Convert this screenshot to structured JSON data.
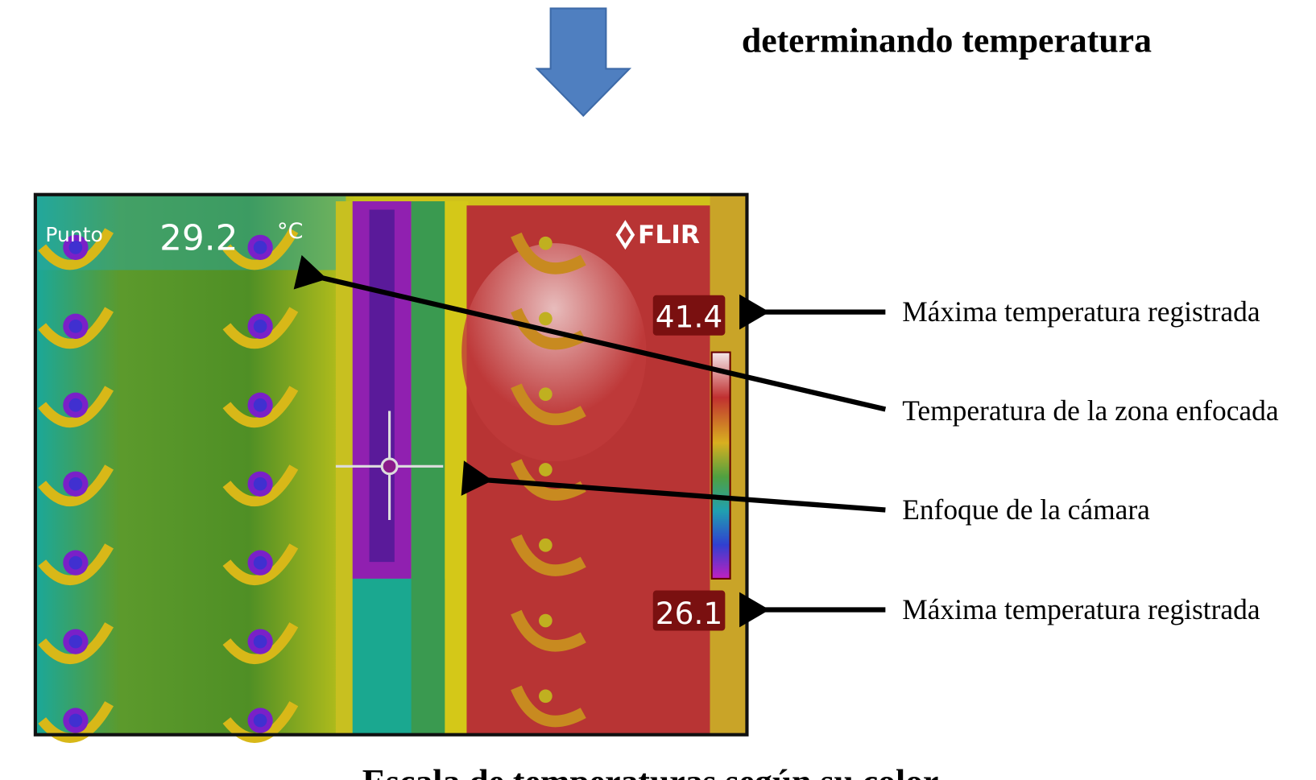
{
  "header": {
    "title": "determinando temperatura"
  },
  "camera": {
    "mode": "Punto",
    "spot_value": "29.2",
    "unit": "°C",
    "brand": "FLIR",
    "max_value": "41.4",
    "min_value": "26.1"
  },
  "annotations": [
    "Máxima temperatura registrada",
    "Temperatura de la zona enfocada",
    "Enfoque de la cámara",
    "Máxima temperatura registrada"
  ],
  "caption": "Escala de temperaturas según su color"
}
